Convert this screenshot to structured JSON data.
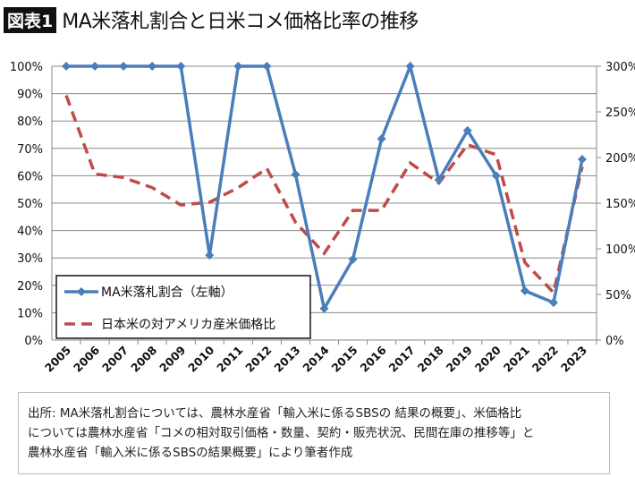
{
  "title": {
    "badge": "図表1",
    "text": "MA米落札割合と日米コメ価格比率の推移"
  },
  "chart_data": {
    "type": "line",
    "title": "MA米落札割合と日米コメ価格比率の推移",
    "categories": [
      "2005",
      "2006",
      "2007",
      "2008",
      "2009",
      "2010",
      "2011",
      "2012",
      "2013",
      "2014",
      "2015",
      "2016",
      "2017",
      "2018",
      "2019",
      "2020",
      "2021",
      "2022",
      "2023"
    ],
    "left_axis": {
      "ylim": [
        0,
        100
      ],
      "ticks": [
        "0%",
        "10%",
        "20%",
        "30%",
        "40%",
        "50%",
        "60%",
        "70%",
        "80%",
        "90%",
        "100%"
      ]
    },
    "right_axis": {
      "ylim": [
        0,
        300
      ],
      "ticks": [
        "0%",
        "50%",
        "100%",
        "150%",
        "200%",
        "250%",
        "300%"
      ]
    },
    "series": [
      {
        "name": "MA米落札割合（左軸）",
        "axis": "left",
        "color": "#4a7ebb",
        "values": [
          100,
          100,
          100,
          100,
          100,
          31,
          100,
          100,
          60.5,
          11.5,
          29.5,
          73.5,
          100,
          58.5,
          76.5,
          60,
          18,
          13.7,
          66
        ]
      },
      {
        "name": "日本米の対アメリカ産米価格比",
        "axis": "right",
        "color": "#be4b48",
        "values": [
          268,
          182,
          178,
          167,
          148,
          151,
          167,
          188,
          129,
          95,
          142,
          142,
          194,
          172,
          214,
          203,
          85,
          52,
          190
        ]
      }
    ],
    "legend": "bottom-left",
    "grid": true
  },
  "note": {
    "lines": [
      "出所: MA米落札割合については、農林水産省「輸入米に係るSBSの 結果の概要」、米価格比",
      "については農林水産省「コメの相対取引価格・数量、契約・販売状況、民間在庫の推移等」と",
      "農林水産省「輸入米に係るSBSの結果概要」により筆者作成"
    ]
  }
}
